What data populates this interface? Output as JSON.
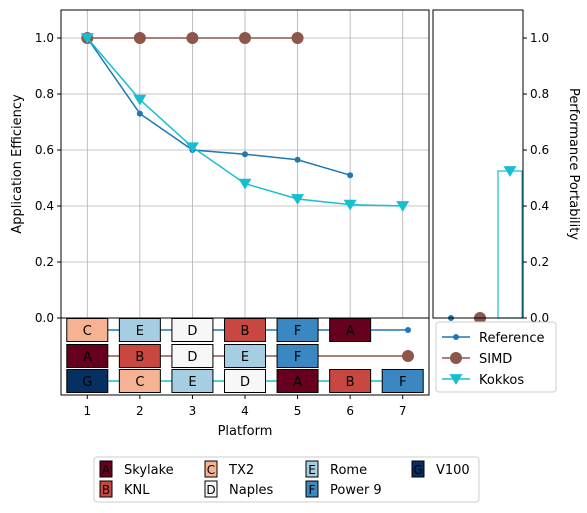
{
  "chart_data": {
    "type": "line",
    "xlabel": "Platform",
    "ylabel": "Application Efficiency",
    "ylabel_right": "Performance Portability",
    "ylim": [
      0,
      1.1
    ],
    "xlim": [
      0.5,
      7.5
    ],
    "grid": true,
    "x_ticks": [
      "1",
      "2",
      "3",
      "4",
      "5",
      "6",
      "7"
    ],
    "y_ticks": [
      "0.0",
      "0.2",
      "0.4",
      "0.6",
      "0.8",
      "1.0"
    ],
    "series": [
      {
        "name": "Reference",
        "color": "#1f77b4",
        "marker": "circle-small",
        "x": [
          1,
          2,
          3,
          4,
          5,
          6
        ],
        "values": [
          1.0,
          0.73,
          0.6,
          0.585,
          0.565,
          0.51
        ],
        "platform_order": [
          "C",
          "E",
          "D",
          "B",
          "F",
          "A"
        ],
        "pp": 0.0
      },
      {
        "name": "SIMD",
        "color": "#8c564b",
        "marker": "circle-large",
        "x": [
          1,
          2,
          3,
          4,
          5
        ],
        "values": [
          1.0,
          1.0,
          1.0,
          1.0,
          1.0
        ],
        "platform_order": [
          "A",
          "B",
          "D",
          "E",
          "F"
        ],
        "pp": 0.0
      },
      {
        "name": "Kokkos",
        "color": "#17becf",
        "marker": "triangle-down",
        "x": [
          1,
          2,
          3,
          4,
          5,
          6,
          7
        ],
        "values": [
          1.0,
          0.78,
          0.61,
          0.48,
          0.425,
          0.405,
          0.4
        ],
        "platform_order": [
          "G",
          "C",
          "E",
          "D",
          "A",
          "B",
          "F"
        ],
        "pp": 0.525
      }
    ],
    "platforms": [
      {
        "code": "A",
        "name": "Skylake",
        "color": "#67001f"
      },
      {
        "code": "B",
        "name": "KNL",
        "color": "#c94741"
      },
      {
        "code": "C",
        "name": "TX2",
        "color": "#f6b394"
      },
      {
        "code": "D",
        "name": "Naples",
        "color": "#f7f7f7"
      },
      {
        "code": "E",
        "name": "Rome",
        "color": "#a6cee3"
      },
      {
        "code": "F",
        "name": "Power 9",
        "color": "#3a87c2"
      },
      {
        "code": "G",
        "name": "V100",
        "color": "#053061"
      }
    ],
    "legend": {
      "placement": "right-below",
      "entries": [
        "Reference",
        "SIMD",
        "Kokkos"
      ]
    }
  }
}
